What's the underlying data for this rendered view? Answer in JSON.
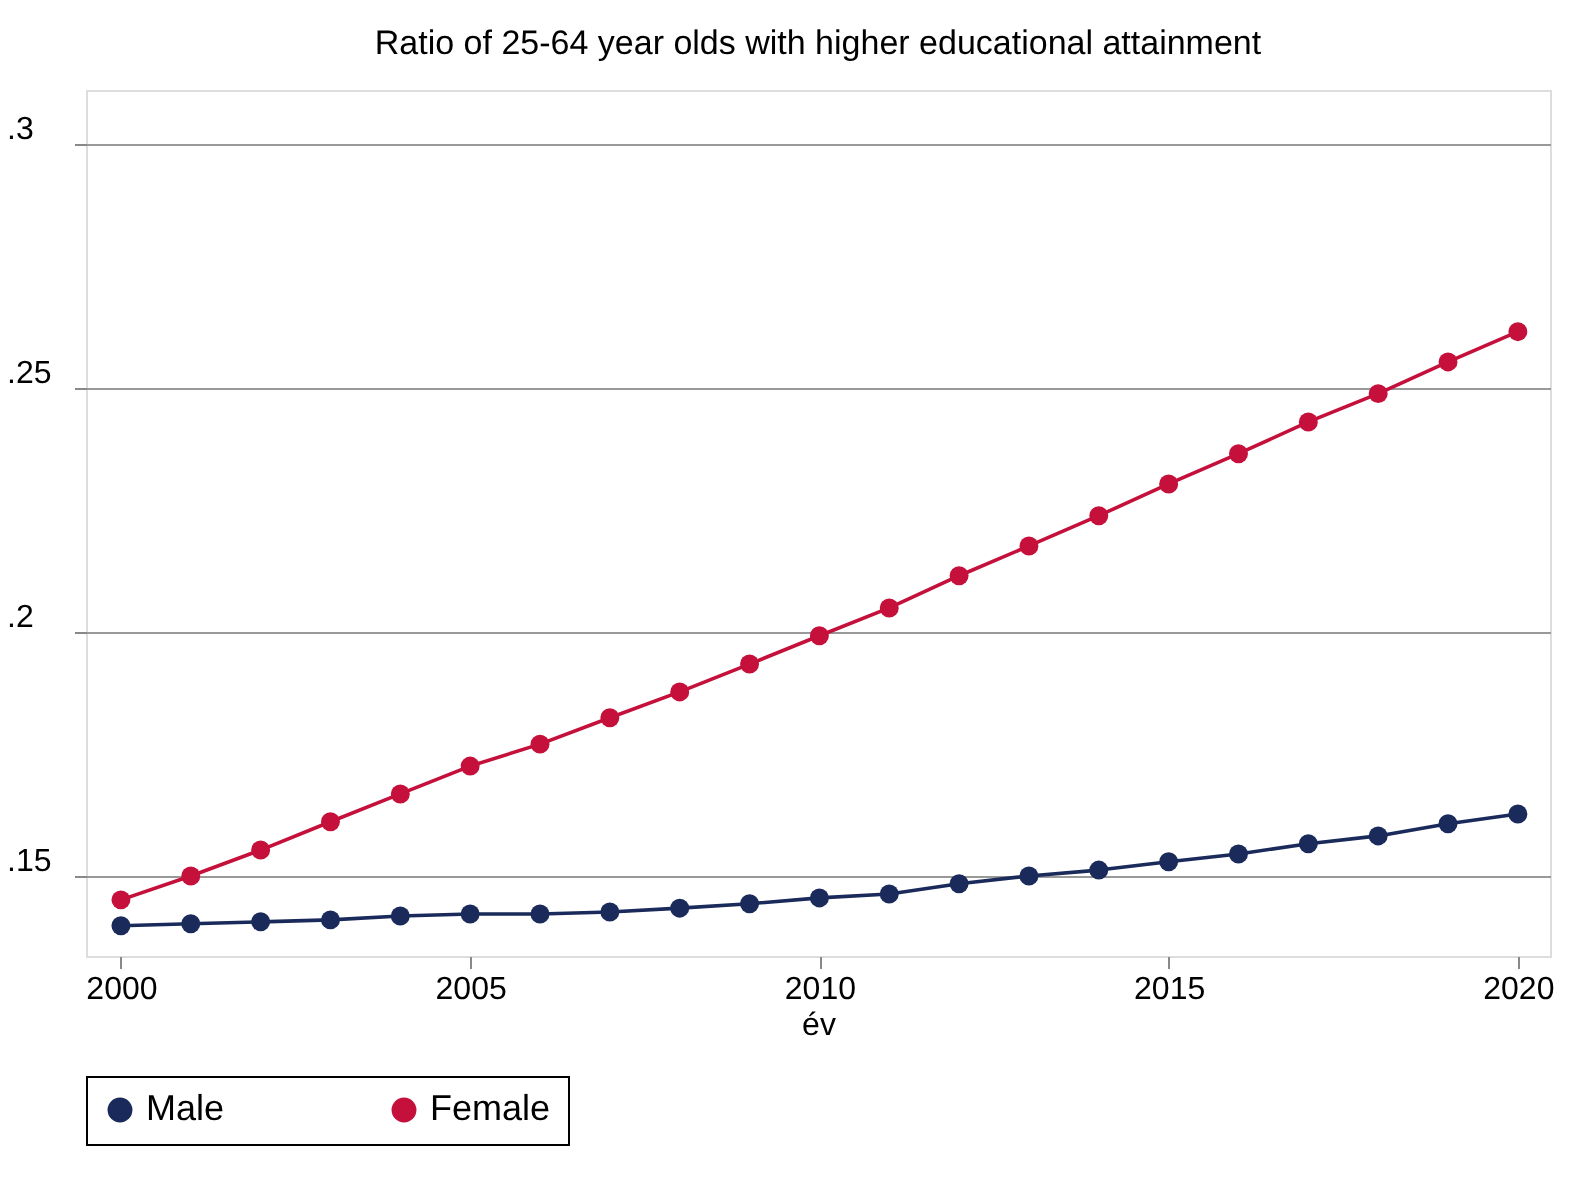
{
  "chart_data": {
    "type": "line",
    "title": "Ratio of 25-64 year olds with higher educational attainment",
    "xlabel": "év",
    "x": [
      2000,
      2001,
      2002,
      2003,
      2004,
      2005,
      2006,
      2007,
      2008,
      2009,
      2010,
      2011,
      2012,
      2013,
      2014,
      2015,
      2016,
      2017,
      2018,
      2019,
      2020
    ],
    "series": [
      {
        "name": "Male",
        "color": "#1a2a5a",
        "values": [
          0.1398,
          0.1402,
          0.1406,
          0.141,
          0.1418,
          0.1422,
          0.1422,
          0.1426,
          0.1434,
          0.1443,
          0.1455,
          0.1463,
          0.1484,
          0.15,
          0.1512,
          0.1529,
          0.1545,
          0.1566,
          0.1582,
          0.1607,
          0.1627
        ]
      },
      {
        "name": "Female",
        "color": "#c4103a",
        "values": [
          0.1451,
          0.15,
          0.1553,
          0.1611,
          0.1668,
          0.1725,
          0.177,
          0.1824,
          0.1877,
          0.1934,
          0.1992,
          0.2049,
          0.2115,
          0.2176,
          0.2238,
          0.2303,
          0.2365,
          0.243,
          0.2488,
          0.2553,
          0.2615
        ]
      }
    ],
    "xlim": [
      1999.5,
      2020.46
    ],
    "xticks": [
      2000,
      2005,
      2010,
      2015,
      2020
    ],
    "ylim": [
      0.1336,
      0.311
    ],
    "yticks": [
      {
        "value": 0.15,
        "label": ".15"
      },
      {
        "value": 0.2,
        "label": ".2"
      },
      {
        "value": 0.25,
        "label": ".25"
      },
      {
        "value": 0.3,
        "label": ".3"
      }
    ],
    "grid": "y",
    "legend": "bottom",
    "marker": "circle",
    "line_style": "solid"
  }
}
